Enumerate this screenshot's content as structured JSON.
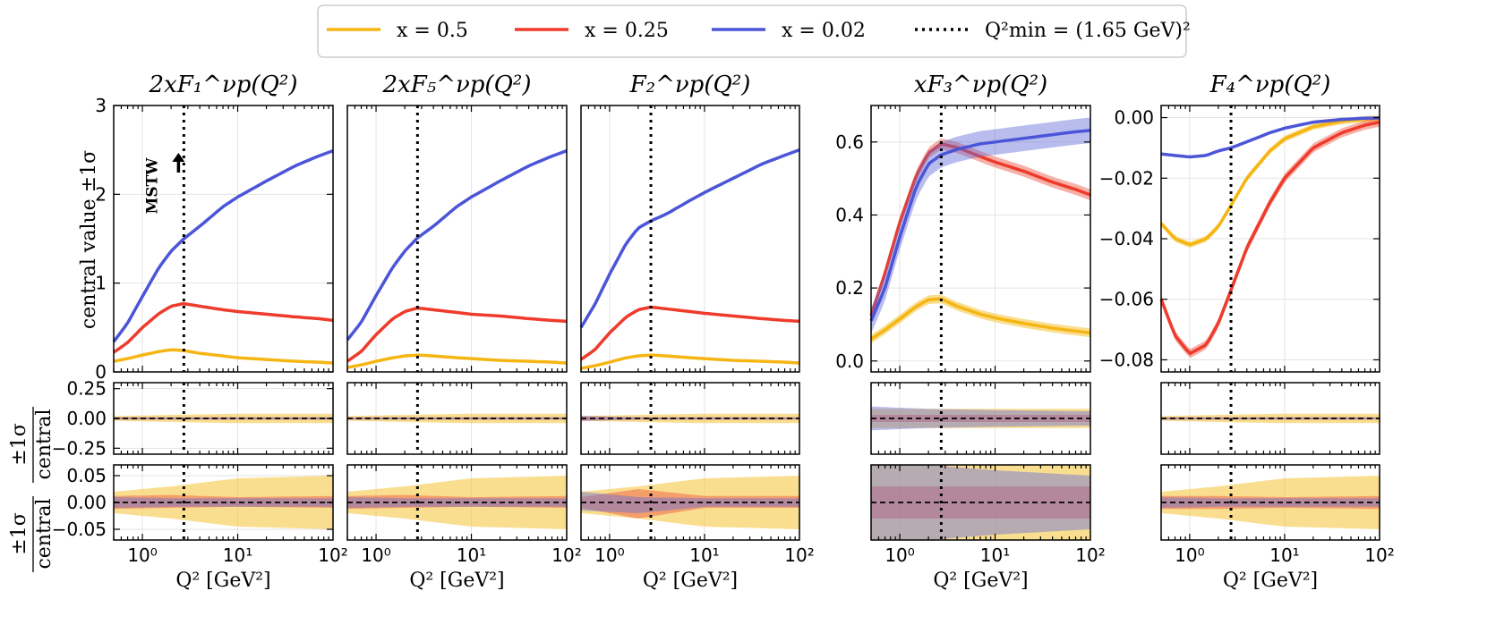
{
  "legend": {
    "entries": [
      {
        "label": "x = 0.5",
        "color": "#F5B513",
        "style": "solid"
      },
      {
        "label": "x = 0.25",
        "color": "#EE3B2B",
        "style": "solid"
      },
      {
        "label": "x = 0.02",
        "color": "#4B55D8",
        "style": "solid"
      },
      {
        "label": "Q²min = (1.65 GeV)²",
        "color": "#000000",
        "style": "dotted"
      }
    ]
  },
  "shared": {
    "xlabel": "Q² [GeV²]",
    "ylabel_top": "central value ±1σ",
    "ylabel_ratio_num": "±1σ",
    "ylabel_ratio_den": "central",
    "annotation": "MSTW",
    "qmin_sq": 2.7225,
    "x_log_range": [
      0.5,
      100
    ],
    "x_ticks": [
      {
        "value": 1,
        "label": "10⁰"
      },
      {
        "value": 10,
        "label": "10¹"
      },
      {
        "value": 100,
        "label": "10²"
      }
    ]
  },
  "chart_data": [
    {
      "id": "F1",
      "type": "line",
      "title": "2xF₁^νp(Q²)",
      "ylim": [
        0,
        3
      ],
      "yticks": [
        {
          "value": 0,
          "label": "0"
        },
        {
          "value": 1,
          "label": "1"
        },
        {
          "value": 2,
          "label": "2"
        },
        {
          "value": 3,
          "label": "3"
        }
      ],
      "x": [
        0.5,
        0.7,
        1.0,
        1.5,
        2.0,
        2.72,
        4,
        7,
        10,
        20,
        40,
        70,
        100
      ],
      "series": [
        {
          "name": "x = 0.5",
          "values": [
            0.12,
            0.15,
            0.19,
            0.23,
            0.25,
            0.24,
            0.21,
            0.18,
            0.16,
            0.14,
            0.12,
            0.11,
            0.1
          ],
          "band": 0.01
        },
        {
          "name": "x = 0.25",
          "values": [
            0.22,
            0.33,
            0.5,
            0.66,
            0.74,
            0.77,
            0.74,
            0.7,
            0.68,
            0.65,
            0.62,
            0.6,
            0.58
          ],
          "band": 0.01
        },
        {
          "name": "x = 0.02",
          "values": [
            0.34,
            0.55,
            0.85,
            1.18,
            1.36,
            1.5,
            1.64,
            1.86,
            1.97,
            2.15,
            2.32,
            2.43,
            2.49
          ],
          "band": 0.01
        }
      ],
      "ratio1": {
        "ylim": [
          -0.3,
          0.3
        ],
        "yticks": [
          {
            "value": 0.25,
            "label": "0.25"
          },
          {
            "value": 0,
            "label": "0.00"
          },
          {
            "value": -0.25,
            "label": "−0.25"
          }
        ],
        "bands": [
          {
            "name": "x = 0.5",
            "lo": [
              -0.02,
              -0.03,
              -0.04,
              -0.04
            ],
            "hi": [
              0.02,
              0.03,
              0.04,
              0.04
            ]
          },
          {
            "name": "x = 0.25",
            "lo": [
              -0.01,
              -0.01,
              -0.01,
              -0.01
            ],
            "hi": [
              0.01,
              0.01,
              0.01,
              0.01
            ]
          },
          {
            "name": "x = 0.02",
            "lo": [
              -0.01,
              -0.01,
              -0.01,
              -0.01
            ],
            "hi": [
              0.01,
              0.01,
              0.01,
              0.01
            ]
          }
        ]
      },
      "ratio2": {
        "ylim": [
          -0.07,
          0.07
        ],
        "yticks": [
          {
            "value": 0.05,
            "label": "0.05"
          },
          {
            "value": 0,
            "label": "0.00"
          },
          {
            "value": -0.05,
            "label": "−0.05"
          }
        ],
        "bands": [
          {
            "name": "x = 0.5",
            "lo": [
              -0.02,
              -0.03,
              -0.045,
              -0.05
            ],
            "hi": [
              0.02,
              0.03,
              0.045,
              0.05
            ]
          },
          {
            "name": "x = 0.25",
            "lo": [
              -0.012,
              -0.01,
              -0.008,
              -0.01
            ],
            "hi": [
              0.012,
              0.014,
              0.01,
              0.012
            ]
          },
          {
            "name": "x = 0.02",
            "lo": [
              -0.01,
              -0.008,
              -0.008,
              -0.008
            ],
            "hi": [
              0.01,
              0.008,
              0.008,
              0.008
            ]
          }
        ]
      }
    },
    {
      "id": "F5",
      "type": "line",
      "title": "2xF₅^νp(Q²)",
      "ylim": [
        0,
        3
      ],
      "yticks": [],
      "x": [
        0.5,
        0.7,
        1.0,
        1.5,
        2.0,
        2.72,
        4,
        7,
        10,
        20,
        40,
        70,
        100
      ],
      "series": [
        {
          "name": "x = 0.5",
          "values": [
            0.05,
            0.08,
            0.12,
            0.16,
            0.18,
            0.19,
            0.18,
            0.16,
            0.15,
            0.13,
            0.12,
            0.11,
            0.1
          ],
          "band": 0.01
        },
        {
          "name": "x = 0.25",
          "values": [
            0.12,
            0.23,
            0.42,
            0.6,
            0.68,
            0.72,
            0.7,
            0.67,
            0.65,
            0.63,
            0.6,
            0.58,
            0.57
          ],
          "band": 0.01
        },
        {
          "name": "x = 0.02",
          "values": [
            0.36,
            0.56,
            0.86,
            1.18,
            1.36,
            1.51,
            1.64,
            1.86,
            1.97,
            2.15,
            2.32,
            2.43,
            2.49
          ],
          "band": 0.01
        }
      ],
      "ratio1": {
        "ylim": [
          -0.3,
          0.3
        ],
        "yticks": [],
        "bands": [
          {
            "name": "x = 0.5",
            "lo": [
              -0.02,
              -0.03,
              -0.04,
              -0.04
            ],
            "hi": [
              0.02,
              0.03,
              0.04,
              0.04
            ]
          },
          {
            "name": "x = 0.25",
            "lo": [
              -0.01,
              -0.01,
              -0.01,
              -0.01
            ],
            "hi": [
              0.01,
              0.01,
              0.01,
              0.01
            ]
          },
          {
            "name": "x = 0.02",
            "lo": [
              -0.01,
              -0.01,
              -0.01,
              -0.01
            ],
            "hi": [
              0.01,
              0.01,
              0.01,
              0.01
            ]
          }
        ]
      },
      "ratio2": {
        "ylim": [
          -0.07,
          0.07
        ],
        "yticks": [],
        "bands": [
          {
            "name": "x = 0.5",
            "lo": [
              -0.02,
              -0.03,
              -0.045,
              -0.05
            ],
            "hi": [
              0.02,
              0.03,
              0.045,
              0.05
            ]
          },
          {
            "name": "x = 0.25",
            "lo": [
              -0.012,
              -0.01,
              -0.008,
              -0.01
            ],
            "hi": [
              0.012,
              0.014,
              0.01,
              0.012
            ]
          },
          {
            "name": "x = 0.02",
            "lo": [
              -0.01,
              -0.008,
              -0.008,
              -0.008
            ],
            "hi": [
              0.01,
              0.008,
              0.008,
              0.008
            ]
          }
        ]
      }
    },
    {
      "id": "F2",
      "type": "line",
      "title": "F₂^νp(Q²)",
      "ylim": [
        0,
        3
      ],
      "yticks": [],
      "x": [
        0.5,
        0.7,
        1.0,
        1.5,
        2.0,
        2.72,
        4,
        7,
        10,
        20,
        40,
        70,
        100
      ],
      "series": [
        {
          "name": "x = 0.5",
          "values": [
            0.04,
            0.07,
            0.11,
            0.16,
            0.18,
            0.19,
            0.18,
            0.16,
            0.15,
            0.13,
            0.12,
            0.11,
            0.1
          ],
          "band": 0.01
        },
        {
          "name": "x = 0.25",
          "values": [
            0.14,
            0.25,
            0.44,
            0.62,
            0.7,
            0.73,
            0.71,
            0.68,
            0.66,
            0.63,
            0.6,
            0.58,
            0.57
          ],
          "band": 0.01
        },
        {
          "name": "x = 0.02",
          "values": [
            0.5,
            0.76,
            1.1,
            1.45,
            1.62,
            1.7,
            1.78,
            1.93,
            2.02,
            2.18,
            2.34,
            2.44,
            2.5
          ],
          "band": 0.01
        }
      ],
      "ratio1": {
        "ylim": [
          -0.3,
          0.3
        ],
        "yticks": [],
        "bands": [
          {
            "name": "x = 0.5",
            "lo": [
              -0.02,
              -0.03,
              -0.04,
              -0.04
            ],
            "hi": [
              0.02,
              0.03,
              0.04,
              0.04
            ]
          },
          {
            "name": "x = 0.25",
            "lo": [
              -0.02,
              -0.01,
              -0.01,
              -0.01
            ],
            "hi": [
              0.02,
              0.01,
              0.01,
              0.01
            ]
          },
          {
            "name": "x = 0.02",
            "lo": [
              -0.02,
              -0.01,
              -0.01,
              -0.01
            ],
            "hi": [
              0.02,
              0.01,
              0.01,
              0.01
            ]
          }
        ]
      },
      "ratio2": {
        "ylim": [
          -0.07,
          0.07
        ],
        "yticks": [],
        "bands": [
          {
            "name": "x = 0.5",
            "lo": [
              -0.02,
              -0.03,
              -0.045,
              -0.05
            ],
            "hi": [
              0.02,
              0.03,
              0.045,
              0.05
            ]
          },
          {
            "name": "x = 0.25",
            "lo": [
              -0.01,
              -0.03,
              -0.01,
              -0.01
            ],
            "hi": [
              0.01,
              0.025,
              0.012,
              0.012
            ]
          },
          {
            "name": "x = 0.02",
            "lo": [
              -0.015,
              -0.02,
              -0.008,
              -0.008
            ],
            "hi": [
              0.02,
              0.01,
              0.008,
              0.008
            ]
          }
        ]
      }
    },
    {
      "id": "F3",
      "type": "line",
      "title": "xF₃^νp(Q²)",
      "ylim": [
        -0.03,
        0.7
      ],
      "yticks": [
        {
          "value": 0,
          "label": "0.0"
        },
        {
          "value": 0.2,
          "label": "0.2"
        },
        {
          "value": 0.4,
          "label": "0.4"
        },
        {
          "value": 0.6,
          "label": "0.6"
        }
      ],
      "x": [
        0.5,
        0.7,
        1.0,
        1.5,
        2.0,
        2.72,
        4,
        7,
        10,
        20,
        40,
        70,
        100
      ],
      "series": [
        {
          "name": "x = 0.5",
          "values": [
            0.06,
            0.085,
            0.115,
            0.15,
            0.168,
            0.17,
            0.15,
            0.128,
            0.118,
            0.103,
            0.09,
            0.082,
            0.077
          ],
          "band": 0.012
        },
        {
          "name": "x = 0.25",
          "values": [
            0.125,
            0.24,
            0.38,
            0.51,
            0.57,
            0.595,
            0.585,
            0.56,
            0.545,
            0.52,
            0.49,
            0.47,
            0.455
          ],
          "band": 0.015
        },
        {
          "name": "x = 0.02",
          "values": [
            0.11,
            0.2,
            0.34,
            0.48,
            0.54,
            0.565,
            0.58,
            0.595,
            0.6,
            0.61,
            0.62,
            0.628,
            0.632
          ],
          "band": 0.035
        }
      ],
      "ratio1": {
        "ylim": [
          -0.3,
          0.3
        ],
        "yticks": [],
        "bands": [
          {
            "name": "x = 0.5",
            "lo": [
              -0.08,
              -0.08,
              -0.08,
              -0.08
            ],
            "hi": [
              0.08,
              0.08,
              0.08,
              0.08
            ]
          },
          {
            "name": "x = 0.25",
            "lo": [
              -0.03,
              -0.03,
              -0.03,
              -0.03
            ],
            "hi": [
              0.03,
              0.03,
              0.03,
              0.03
            ]
          },
          {
            "name": "x = 0.02",
            "lo": [
              -0.1,
              -0.08,
              -0.07,
              -0.06
            ],
            "hi": [
              0.1,
              0.08,
              0.07,
              0.06
            ]
          }
        ]
      },
      "ratio2": {
        "ylim": [
          -0.07,
          0.07
        ],
        "yticks": [],
        "bands": [
          {
            "name": "x = 0.5",
            "lo": [
              -0.07,
              -0.07,
              -0.07,
              -0.07
            ],
            "hi": [
              0.07,
              0.07,
              0.07,
              0.07
            ]
          },
          {
            "name": "x = 0.25",
            "lo": [
              -0.03,
              -0.03,
              -0.03,
              -0.03
            ],
            "hi": [
              0.03,
              0.03,
              0.03,
              0.03
            ]
          },
          {
            "name": "x = 0.02",
            "lo": [
              -0.07,
              -0.07,
              -0.06,
              -0.05
            ],
            "hi": [
              0.07,
              0.07,
              0.06,
              0.05
            ]
          }
        ]
      }
    },
    {
      "id": "F4",
      "type": "line",
      "title": "F₄^νp(Q²)",
      "ylim": [
        -0.084,
        0.004
      ],
      "yticks": [
        {
          "value": 0,
          "label": "0.00"
        },
        {
          "value": -0.02,
          "label": "−0.02"
        },
        {
          "value": -0.04,
          "label": "−0.04"
        },
        {
          "value": -0.06,
          "label": "−0.06"
        },
        {
          "value": -0.08,
          "label": "−0.08"
        }
      ],
      "x": [
        0.5,
        0.7,
        1.0,
        1.5,
        2.0,
        2.72,
        4,
        7,
        10,
        20,
        40,
        70,
        100
      ],
      "series": [
        {
          "name": "x = 0.5",
          "values": [
            -0.035,
            -0.04,
            -0.042,
            -0.04,
            -0.036,
            -0.029,
            -0.02,
            -0.011,
            -0.007,
            -0.003,
            -0.0012,
            -0.0005,
            -0.0002
          ],
          "band": 0.001
        },
        {
          "name": "x = 0.25",
          "values": [
            -0.06,
            -0.072,
            -0.078,
            -0.075,
            -0.068,
            -0.057,
            -0.043,
            -0.028,
            -0.02,
            -0.01,
            -0.005,
            -0.0025,
            -0.0015
          ],
          "band": 0.0015
        },
        {
          "name": "x = 0.02",
          "values": [
            -0.012,
            -0.0125,
            -0.013,
            -0.0125,
            -0.011,
            -0.01,
            -0.008,
            -0.005,
            -0.0035,
            -0.0015,
            -0.0006,
            -0.0002,
            -0.0001
          ],
          "band": 0.0003
        }
      ],
      "ratio1": {
        "ylim": [
          -0.3,
          0.3
        ],
        "yticks": [],
        "bands": [
          {
            "name": "x = 0.5",
            "lo": [
              -0.02,
              -0.03,
              -0.04,
              -0.04
            ],
            "hi": [
              0.02,
              0.03,
              0.04,
              0.04
            ]
          },
          {
            "name": "x = 0.25",
            "lo": [
              -0.01,
              -0.01,
              -0.01,
              -0.01
            ],
            "hi": [
              0.01,
              0.01,
              0.01,
              0.01
            ]
          },
          {
            "name": "x = 0.02",
            "lo": [
              -0.01,
              -0.01,
              -0.01,
              -0.01
            ],
            "hi": [
              0.01,
              0.01,
              0.01,
              0.01
            ]
          }
        ]
      },
      "ratio2": {
        "ylim": [
          -0.07,
          0.07
        ],
        "yticks": [],
        "bands": [
          {
            "name": "x = 0.5",
            "lo": [
              -0.02,
              -0.03,
              -0.045,
              -0.05
            ],
            "hi": [
              0.02,
              0.03,
              0.045,
              0.05
            ]
          },
          {
            "name": "x = 0.25",
            "lo": [
              -0.012,
              -0.012,
              -0.01,
              -0.012
            ],
            "hi": [
              0.012,
              0.012,
              0.01,
              0.012
            ]
          },
          {
            "name": "x = 0.02",
            "lo": [
              -0.01,
              -0.008,
              -0.008,
              -0.008
            ],
            "hi": [
              0.01,
              0.008,
              0.008,
              0.008
            ]
          }
        ]
      }
    }
  ]
}
